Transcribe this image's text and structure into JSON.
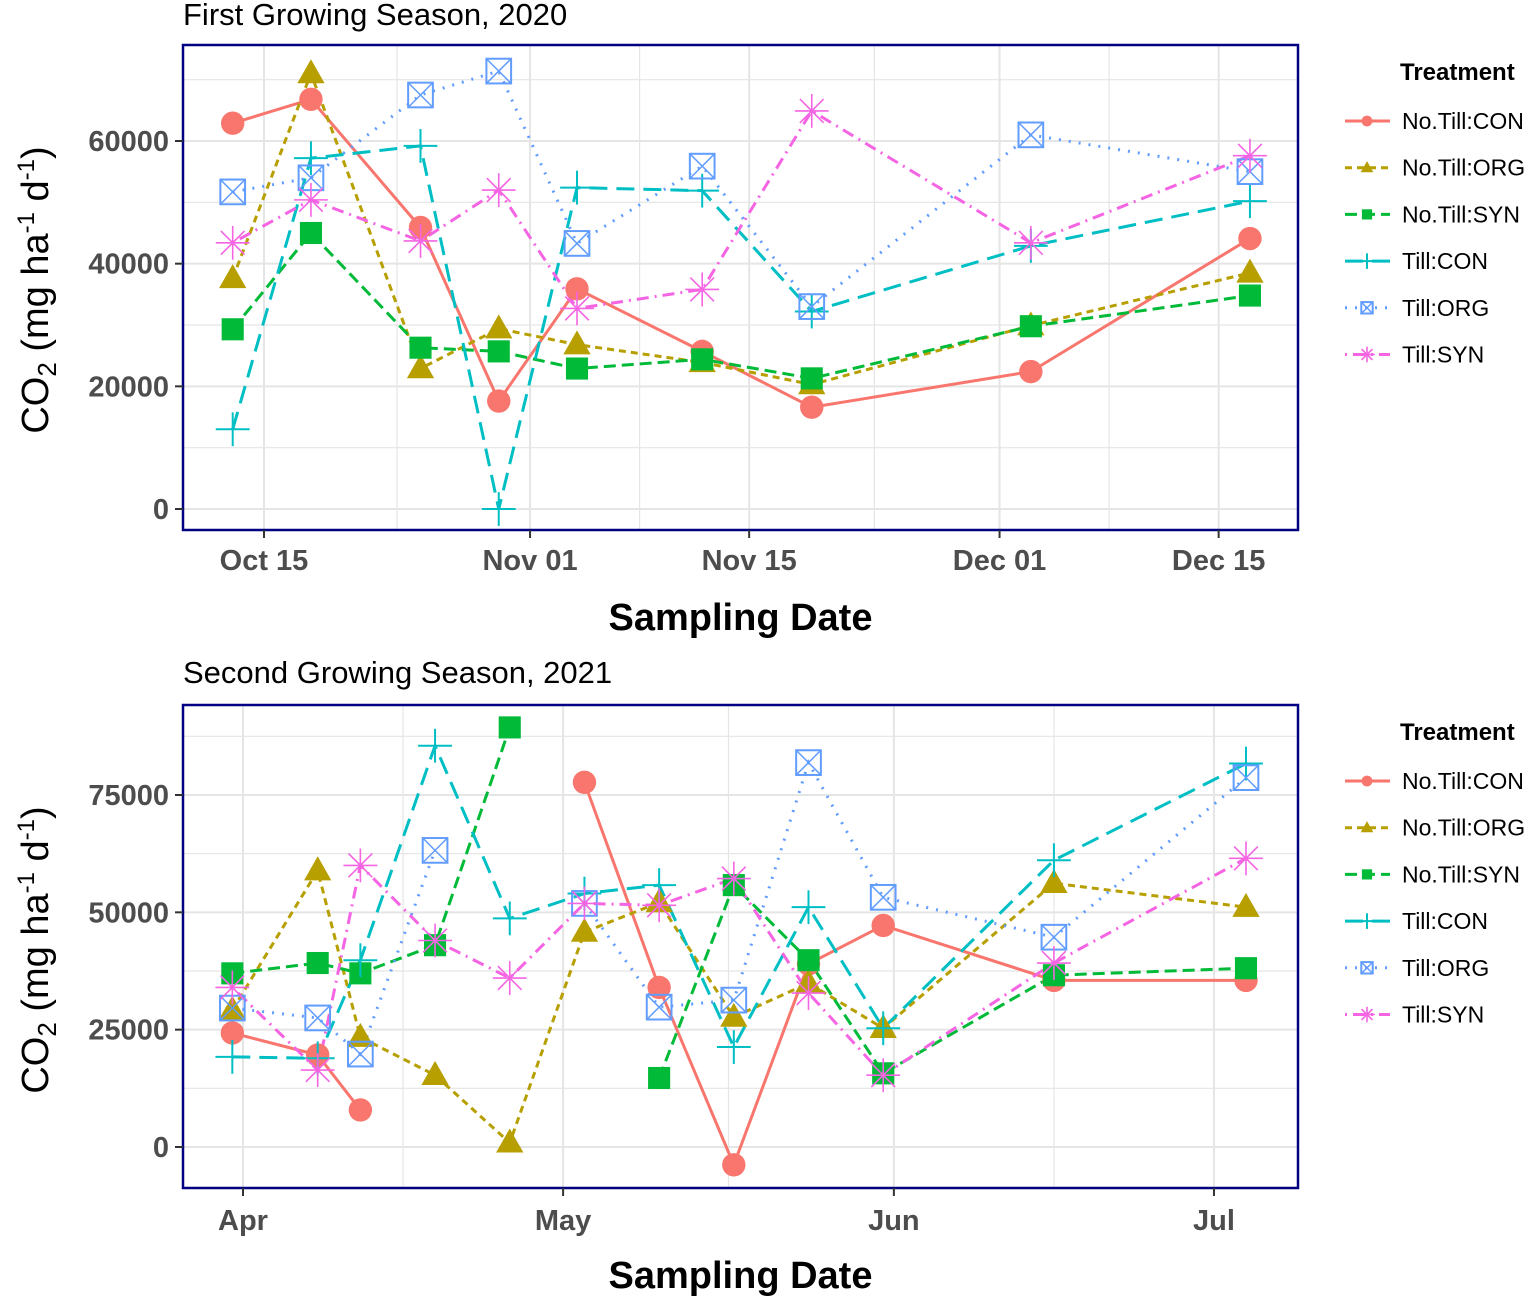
{
  "legend_title": "Treatment",
  "colors": {
    "No.Till:CON": "#F8766D",
    "No.Till:ORG": "#B79F00",
    "No.Till:SYN": "#00BA38",
    "Till:CON": "#00BFC4",
    "Till:ORG": "#619CFF",
    "Till:SYN": "#F564E3",
    "frame": "#000080",
    "grid": "#e5e5e5"
  },
  "chart_data": [
    {
      "type": "line",
      "title": "First Growing Season, 2020",
      "xlabel": "Sampling Date",
      "ylabel": {
        "main": "CO",
        "sub": "2",
        "unit_a": "(mg  ha",
        "sup_a": "-1",
        "unit_b": "d",
        "sup_b": "-1",
        "close": ")"
      },
      "x_ticks": [
        {
          "label": "Oct 15",
          "date": "2020-10-15"
        },
        {
          "label": "Nov 01",
          "date": "2020-11-01"
        },
        {
          "label": "Nov 15",
          "date": "2020-11-15"
        },
        {
          "label": "Dec 01",
          "date": "2020-12-01"
        },
        {
          "label": "Dec 15",
          "date": "2020-12-15"
        }
      ],
      "y_ticks": [
        "0",
        "20000",
        "40000",
        "60000"
      ],
      "ylim": [
        -3500,
        75000
      ],
      "grid": true,
      "legend_position": "right",
      "dates": [
        "2020-10-13",
        "2020-10-18",
        "2020-10-25",
        "2020-10-30",
        "2020-11-04",
        "2020-11-12",
        "2020-11-19",
        "2020-12-03",
        "2020-12-17"
      ],
      "series": [
        {
          "name": "No.Till:CON",
          "values": [
            62900,
            66800,
            45900,
            17600,
            35900,
            25700,
            16600,
            22400,
            44100
          ]
        },
        {
          "name": "No.Till:ORG",
          "values": [
            37600,
            71000,
            22900,
            29400,
            26800,
            23900,
            20300,
            29900,
            38500
          ]
        },
        {
          "name": "No.Till:SYN",
          "values": [
            29300,
            45000,
            26300,
            25700,
            22900,
            24400,
            21300,
            29800,
            34800
          ]
        },
        {
          "name": "Till:CON",
          "values": [
            13000,
            57200,
            59200,
            0,
            52400,
            51900,
            32200,
            42900,
            50200
          ]
        },
        {
          "name": "Till:ORG",
          "values": [
            51700,
            54000,
            67500,
            71400,
            43300,
            55900,
            33000,
            61000,
            55000
          ]
        },
        {
          "name": "Till:SYN",
          "values": [
            43400,
            50400,
            43700,
            52000,
            32700,
            35800,
            64900,
            43400,
            57600
          ]
        }
      ]
    },
    {
      "type": "line",
      "title": "Second Growing Season, 2021",
      "xlabel": "Sampling Date",
      "ylabel": {
        "main": "CO",
        "sub": "2",
        "unit_a": "(mg  ha",
        "sup_a": "-1",
        "unit_b": "d",
        "sup_b": "-1",
        "close": ")"
      },
      "x_ticks": [
        {
          "label": "Apr",
          "date": "2021-04-01"
        },
        {
          "label": "May",
          "date": "2021-05-01"
        },
        {
          "label": "Jun",
          "date": "2021-06-01"
        },
        {
          "label": "Jul",
          "date": "2021-07-01"
        }
      ],
      "y_ticks": [
        "0",
        "25000",
        "50000",
        "75000"
      ],
      "ylim": [
        -8500,
        94000
      ],
      "grid": true,
      "legend_position": "right",
      "dates": [
        "2021-03-31",
        "2021-04-08",
        "2021-04-12",
        "2021-04-19",
        "2021-04-26",
        "2021-05-03",
        "2021-05-10",
        "2021-05-17",
        "2021-05-24",
        "2021-05-31",
        "2021-06-16",
        "2021-07-04"
      ],
      "series": [
        {
          "name": "No.Till:CON",
          "values": [
            24300,
            19600,
            7900,
            null,
            null,
            77700,
            34000,
            -3800,
            39000,
            47200,
            35500,
            35500
          ]
        },
        {
          "name": "No.Till:ORG",
          "values": [
            29200,
            58900,
            23400,
            15300,
            900,
            45800,
            52100,
            27700,
            34900,
            25300,
            56200,
            51100
          ]
        },
        {
          "name": "No.Till:SYN",
          "values": [
            37000,
            39200,
            37000,
            43000,
            89400,
            null,
            14700,
            55800,
            39800,
            15700,
            36600,
            38100
          ]
        },
        {
          "name": "Till:CON",
          "values": [
            19200,
            18900,
            39800,
            85500,
            48700,
            54000,
            55800,
            21300,
            51100,
            25300,
            61100,
            81700
          ]
        },
        {
          "name": "Till:ORG",
          "values": [
            29600,
            27500,
            19800,
            63200,
            null,
            51900,
            29800,
            31300,
            81900,
            53200,
            44700,
            78700
          ]
        },
        {
          "name": "Till:SYN",
          "values": [
            34000,
            16400,
            60000,
            44000,
            36000,
            51900,
            51500,
            57200,
            32800,
            15300,
            39200,
            61500
          ]
        }
      ]
    }
  ]
}
